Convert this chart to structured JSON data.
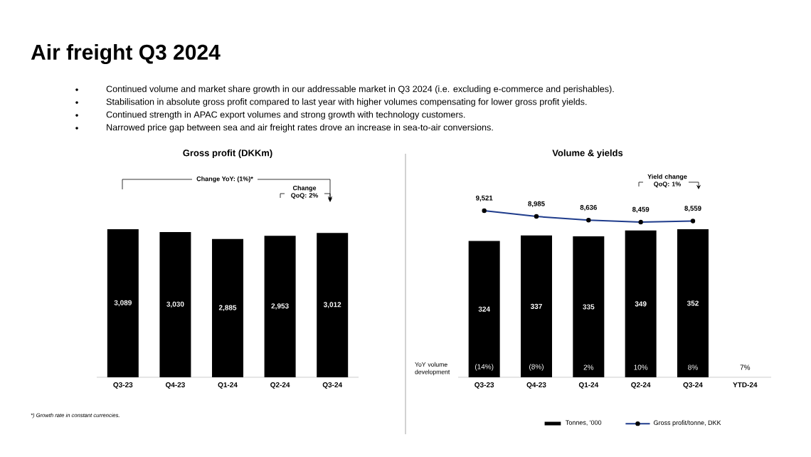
{
  "chart_data": [
    {
      "type": "other",
      "title": "Air freight Q3 2024",
      "annotations": [
        "Continued volume and market share growth in our addressable market in Q3 2024 (i.e. excluding e-commerce and perishables).",
        "Stabilisation in absolute gross profit compared to last year with higher volumes compensating for lower gross profit yields.",
        "Continued strength in APAC export volumes and strong growth with technology customers.",
        "Narrowed price gap between sea and air freight rates drove an increase in sea-to-air conversions.",
        "Volume & yields"
      ]
    },
    {
      "type": "bar",
      "title": "Gross profit (DKKm)",
      "categories": [
        "Q3-23",
        "Q4-23",
        "Q1-24",
        "Q2-24",
        "Q3-24"
      ],
      "values": [
        3089,
        3030,
        2885,
        2953,
        3012
      ],
      "value_labels": [
        "3,089",
        "3,030",
        "2,885",
        "2,953",
        "3,012"
      ],
      "color": "#000000",
      "annotations": [
        "Change YoY: (1%)*",
        "Change QoQ: 2%",
        "*) Growth rate in constant currencies."
      ]
    },
    {
      "type": "bar",
      "categories": [
        "Q3-23",
        "Q4-23",
        "Q1-24",
        "Q2-24",
        "Q3-24",
        "YTD-24"
      ],
      "series": [
        {
          "name": "Tonnes, '000",
          "type": "bar",
          "color": "#000000",
          "values": [
            324,
            337,
            335,
            349,
            352,
            null
          ],
          "value_labels": [
            "324",
            "337",
            "335",
            "349",
            "352",
            null
          ]
        }
      ],
      "legend": "bottom",
      "annotations": [
        "Yield change QoQ: 1%",
        "YoY volume development",
        "(14%)",
        "(8%)",
        "2%",
        "10%",
        "8%",
        "7%"
      ]
    },
    {
      "type": "line",
      "categories": [
        null,
        null,
        null,
        null,
        null,
        null
      ],
      "tick_labels": false,
      "legend": "bottom",
      "series": [
        {
          "name": "Gross profit/tonne, DKK",
          "color": "#1f3c8c",
          "marker": "circle",
          "values": [
            9521,
            8985,
            8636,
            8459,
            8559,
            null
          ],
          "value_labels": [
            "9,521",
            "8,985",
            "8,636",
            "8,459",
            "8,559",
            null
          ]
        }
      ]
    }
  ]
}
